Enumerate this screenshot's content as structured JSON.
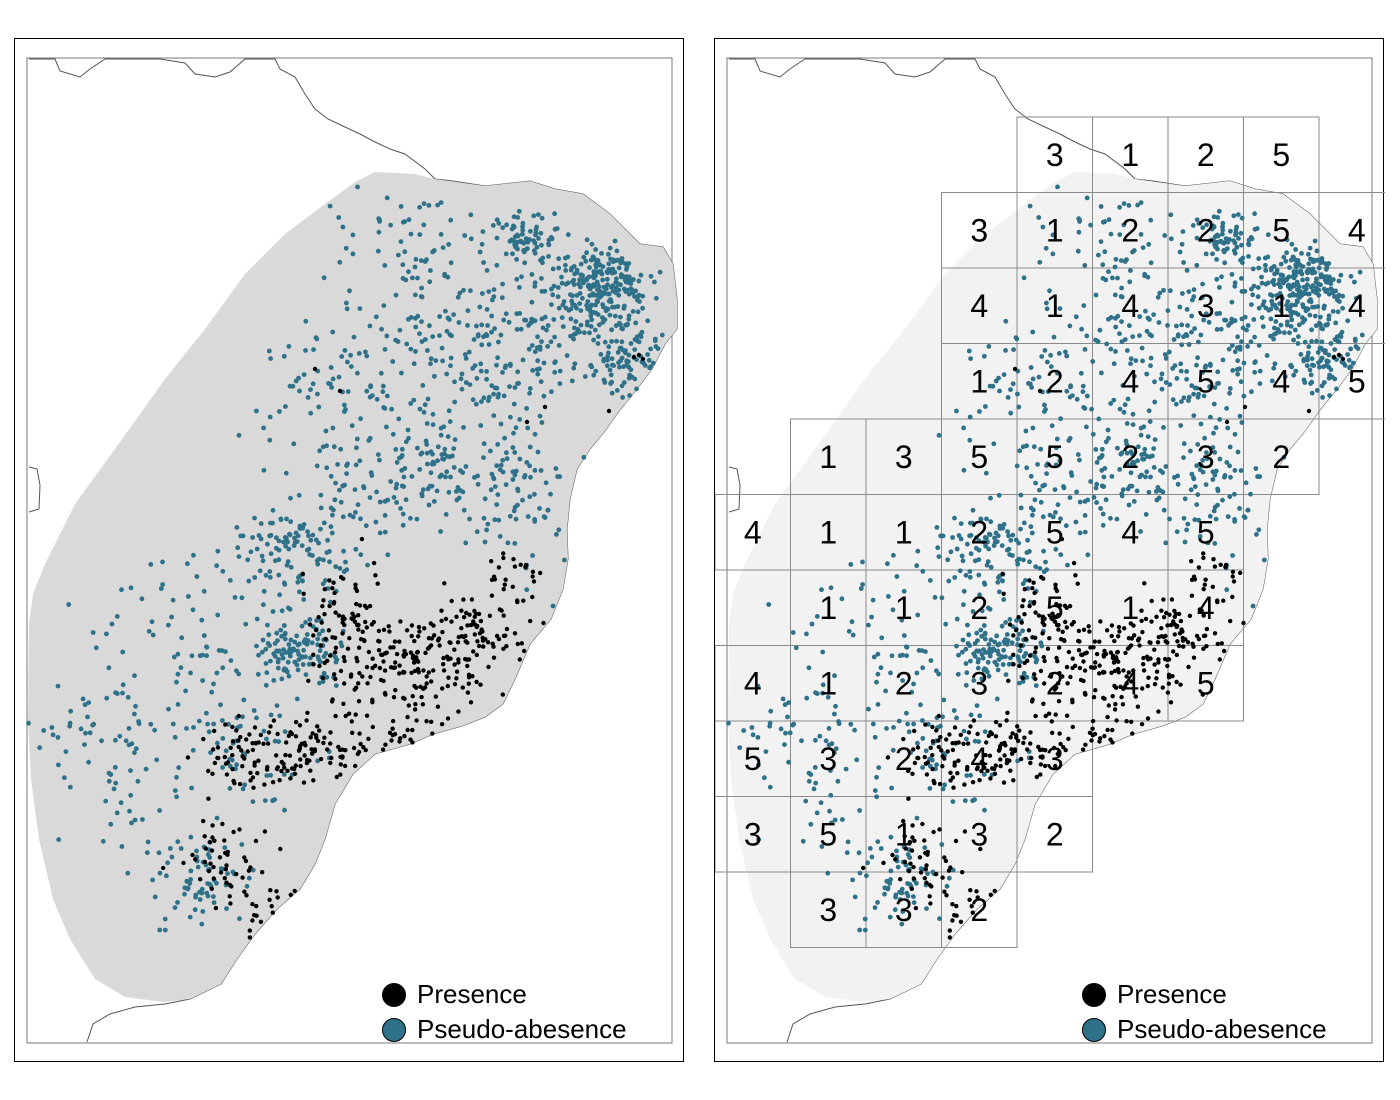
{
  "legend": {
    "presence": {
      "label": "Presence",
      "color": "#000000"
    },
    "pseudo_absence": {
      "label": "Pseudo-abesence",
      "color": "#2e7189"
    }
  },
  "colors": {
    "region_fill_left": "#d9d9d9",
    "region_fill_right": "#f2f2f2",
    "coast": "#555555",
    "grid": "#8a8a8a"
  },
  "fold_grid_rows": [
    [
      "",
      "",
      "",
      "",
      "3",
      "1",
      "2",
      "5",
      ""
    ],
    [
      "",
      "",
      "",
      "3",
      "1",
      "2",
      "2",
      "5",
      "4"
    ],
    [
      "",
      "",
      "",
      "4",
      "1",
      "4",
      "3",
      "1",
      "4"
    ],
    [
      "",
      "",
      "",
      "1",
      "2",
      "4",
      "5",
      "4",
      "5"
    ],
    [
      "",
      "1",
      "3",
      "5",
      "5",
      "2",
      "3",
      "2",
      ""
    ],
    [
      "4",
      "1",
      "1",
      "2",
      "5",
      "4",
      "5",
      "",
      ""
    ],
    [
      "",
      "1",
      "1",
      "2",
      "5",
      "1",
      "4",
      "",
      ""
    ],
    [
      "4",
      "1",
      "2",
      "3",
      "2",
      "4",
      "5",
      "",
      ""
    ],
    [
      "5",
      "3",
      "2",
      "4",
      "3",
      "",
      "",
      "",
      ""
    ],
    [
      "3",
      "5",
      "1",
      "3",
      "2",
      "",
      "",
      "",
      ""
    ],
    [
      "",
      "3",
      "3",
      "2",
      "",
      "",
      "",
      "",
      ""
    ]
  ]
}
